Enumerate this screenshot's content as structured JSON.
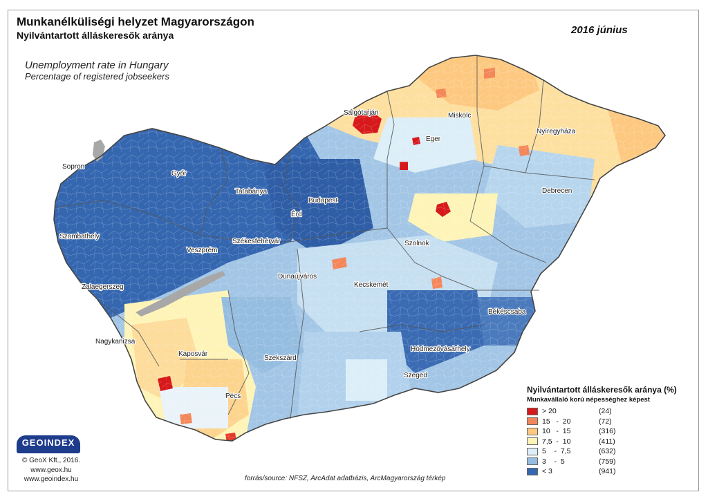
{
  "header": {
    "title_hu": "Munkanélküliségi helyzet Magyarországon",
    "subtitle_hu": "Nyilvántartott álláskeresők aránya",
    "date": "2016 június",
    "title_en": "Unemployment rate in Hungary",
    "subtitle_en": "Percentage of registered jobseekers"
  },
  "cities": [
    {
      "id": "salgotarjan",
      "name": "Salgótarján"
    },
    {
      "id": "miskolc",
      "name": "Miskolc"
    },
    {
      "id": "nyiregyhaza",
      "name": "Nyíregyháza"
    },
    {
      "id": "eger",
      "name": "Eger"
    },
    {
      "id": "debrecen",
      "name": "Debrecen"
    },
    {
      "id": "sopron",
      "name": "Sopron"
    },
    {
      "id": "gyor",
      "name": "Győr"
    },
    {
      "id": "tatabanya",
      "name": "Tatabánya"
    },
    {
      "id": "budapest",
      "name": "Budapest"
    },
    {
      "id": "erd",
      "name": "Érd"
    },
    {
      "id": "szombathely",
      "name": "Szombathely"
    },
    {
      "id": "szekesfehervar",
      "name": "Székesfehérvár"
    },
    {
      "id": "veszprem",
      "name": "Veszprém"
    },
    {
      "id": "szolnok",
      "name": "Szolnok"
    },
    {
      "id": "dunaujvaros",
      "name": "Dunaújváros"
    },
    {
      "id": "kecskemet",
      "name": "Kecskemét"
    },
    {
      "id": "zalaegerszeg",
      "name": "Zalaegerszeg"
    },
    {
      "id": "bekescsaba",
      "name": "Békéscsaba"
    },
    {
      "id": "nagykanizsa",
      "name": "Nagykanizsa"
    },
    {
      "id": "kaposvar",
      "name": "Kaposvár"
    },
    {
      "id": "szekszard",
      "name": "Szekszárd"
    },
    {
      "id": "hodmezovasarhely",
      "name": "Hódmezővásárhely"
    },
    {
      "id": "pecs",
      "name": "Pécs"
    },
    {
      "id": "szeged",
      "name": "Szeged"
    }
  ],
  "legend": {
    "title": "Nyilvántartott álláskeresők aránya (%)",
    "subtitle": "Munkavállaló korú népességhez képest",
    "classes": [
      {
        "label": "> 20",
        "count": "(24)",
        "color": "#d7191c"
      },
      {
        "label": "15   -  20",
        "count": "(72)",
        "color": "#f4875a"
      },
      {
        "label": "10   -  15",
        "count": "(316)",
        "color": "#fdc981"
      },
      {
        "label": "7,5  -  10",
        "count": "(411)",
        "color": "#fef4b8"
      },
      {
        "label": "5    -  7,5",
        "count": "(632)",
        "color": "#dceef7"
      },
      {
        "label": "3    -  5",
        "count": "(759)",
        "color": "#95bde0"
      },
      {
        "label": "< 3",
        "count": "(941)",
        "color": "#3567b0"
      }
    ]
  },
  "logo": {
    "name": "GEOINDEX"
  },
  "credits": {
    "copyright": "© GeoX Kft., 2016.",
    "site1": "www.geox.hu",
    "site2": "www.geoindex.hu"
  },
  "source": "forrás/source: NFSZ, ArcAdat adatbázis, ArcMagyarország térkép"
}
